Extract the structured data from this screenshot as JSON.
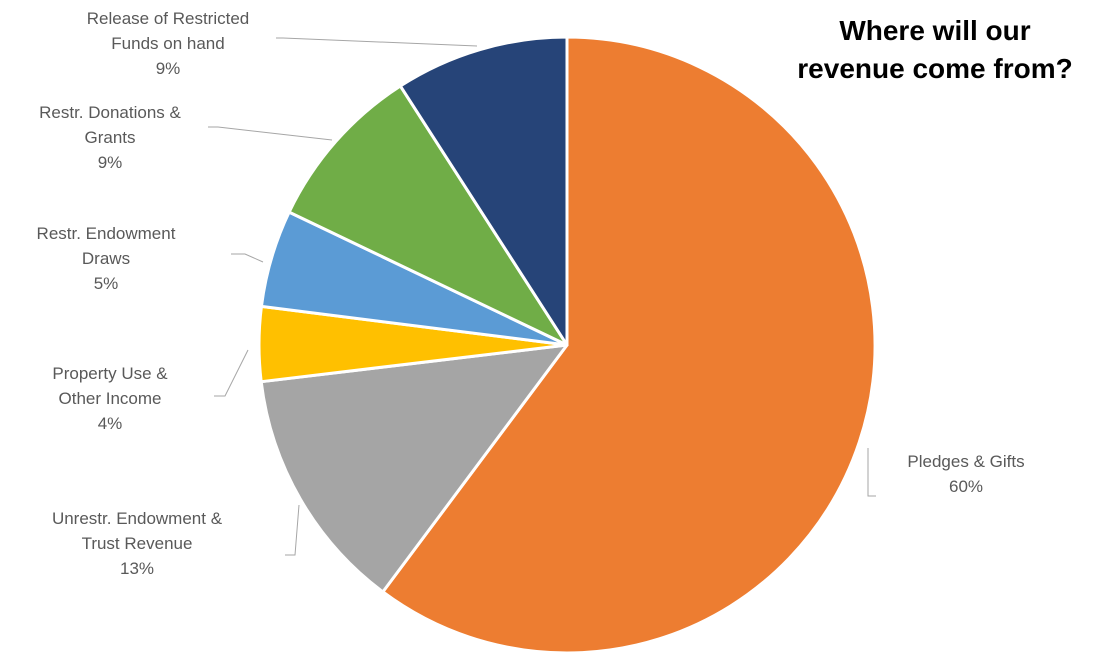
{
  "chart_data": {
    "type": "pie",
    "title_lines": [
      "Where will our",
      "revenue come from?"
    ],
    "start_angle_deg": 0,
    "direction": "clockwise",
    "slices": [
      {
        "name": "Pledges & Gifts",
        "label_lines": [
          "Pledges & Gifts"
        ],
        "percent_label": "60%",
        "value": 60.2,
        "color": "#ED7D31"
      },
      {
        "name": "Unrestr. Endowment & Trust Revenue",
        "label_lines": [
          "Unrestr. Endowment &",
          "Trust Revenue"
        ],
        "percent_label": "13%",
        "value": 12.9,
        "color": "#A5A5A5"
      },
      {
        "name": "Property Use & Other Income",
        "label_lines": [
          "Property Use &",
          "Other Income"
        ],
        "percent_label": "4%",
        "value": 3.9,
        "color": "#FFC000"
      },
      {
        "name": "Restr. Endowment Draws",
        "label_lines": [
          "Restr. Endowment",
          "Draws"
        ],
        "percent_label": "5%",
        "value": 5.1,
        "color": "#5B9BD5"
      },
      {
        "name": "Restr. Donations & Grants",
        "label_lines": [
          "Restr. Donations &",
          "Grants"
        ],
        "percent_label": "9%",
        "value": 8.8,
        "color": "#70AD47"
      },
      {
        "name": "Release of Restricted Funds on hand",
        "label_lines": [
          "Release of Restricted",
          "Funds on hand"
        ],
        "percent_label": "9%",
        "value": 9.1,
        "color": "#264478"
      }
    ]
  }
}
